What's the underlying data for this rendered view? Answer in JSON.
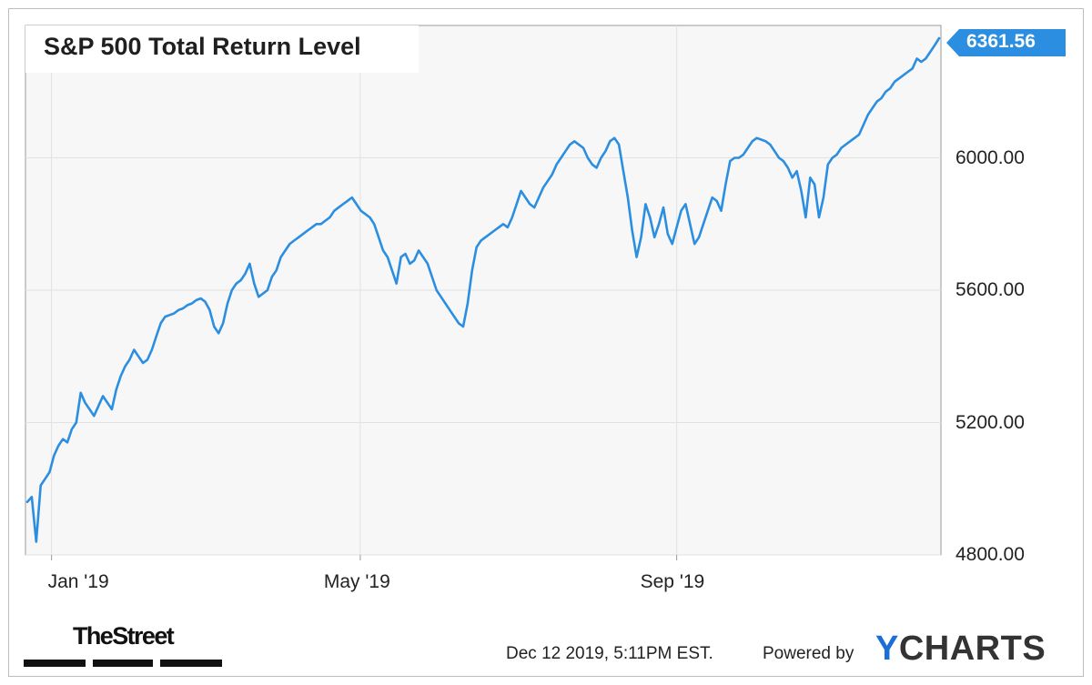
{
  "chart_data": {
    "type": "line",
    "title": "S&P 500 Total Return Level",
    "x_ticks": [
      "Jan '19",
      "May '19",
      "Sep '19"
    ],
    "y_ticks": [
      "4800.00",
      "5200.00",
      "5600.00",
      "6000.00"
    ],
    "ylim": [
      4800,
      6400
    ],
    "last_value_label": "6361.56",
    "grid": true,
    "line_color": "#2b8ee0",
    "series": [
      {
        "x_start": "2018-12-24",
        "x_end": "2019-12-12",
        "values": [
          4960,
          4975,
          4840,
          5010,
          5030,
          5050,
          5100,
          5130,
          5150,
          5140,
          5180,
          5200,
          5290,
          5260,
          5240,
          5220,
          5250,
          5280,
          5260,
          5240,
          5300,
          5340,
          5370,
          5390,
          5420,
          5400,
          5380,
          5390,
          5420,
          5460,
          5500,
          5520,
          5525,
          5530,
          5540,
          5545,
          5555,
          5560,
          5570,
          5575,
          5565,
          5540,
          5490,
          5470,
          5500,
          5560,
          5600,
          5620,
          5630,
          5650,
          5680,
          5620,
          5580,
          5590,
          5600,
          5640,
          5660,
          5700,
          5720,
          5740,
          5750,
          5760,
          5770,
          5780,
          5790,
          5800,
          5800,
          5810,
          5820,
          5840,
          5850,
          5860,
          5870,
          5880,
          5860,
          5840,
          5830,
          5820,
          5800,
          5760,
          5720,
          5700,
          5660,
          5620,
          5700,
          5710,
          5680,
          5690,
          5720,
          5700,
          5680,
          5640,
          5600,
          5580,
          5560,
          5540,
          5520,
          5500,
          5490,
          5560,
          5660,
          5730,
          5750,
          5760,
          5770,
          5780,
          5790,
          5800,
          5790,
          5820,
          5860,
          5900,
          5880,
          5860,
          5850,
          5880,
          5910,
          5930,
          5950,
          5980,
          6000,
          6020,
          6040,
          6050,
          6040,
          6030,
          6000,
          5980,
          5970,
          6000,
          6020,
          6050,
          6060,
          6040,
          5960,
          5880,
          5780,
          5700,
          5760,
          5860,
          5820,
          5760,
          5800,
          5850,
          5770,
          5740,
          5790,
          5840,
          5860,
          5800,
          5740,
          5760,
          5800,
          5840,
          5880,
          5870,
          5840,
          5920,
          5990,
          6000,
          6000,
          6010,
          6030,
          6050,
          6060,
          6055,
          6050,
          6040,
          6020,
          6000,
          5990,
          5970,
          5940,
          5960,
          5900,
          5820,
          5940,
          5920,
          5820,
          5880,
          5980,
          6000,
          6010,
          6030,
          6040,
          6050,
          6060,
          6070,
          6100,
          6130,
          6150,
          6170,
          6180,
          6200,
          6210,
          6230,
          6240,
          6250,
          6260,
          6270,
          6300,
          6290,
          6300,
          6320,
          6340,
          6361.56
        ]
      }
    ]
  },
  "footer": {
    "timestamp": "Dec 12 2019, 5:11PM EST.",
    "powered_by": "Powered by",
    "brand_y": "Y",
    "brand_rest": "CHARTS",
    "publisher": "TheStreet"
  }
}
